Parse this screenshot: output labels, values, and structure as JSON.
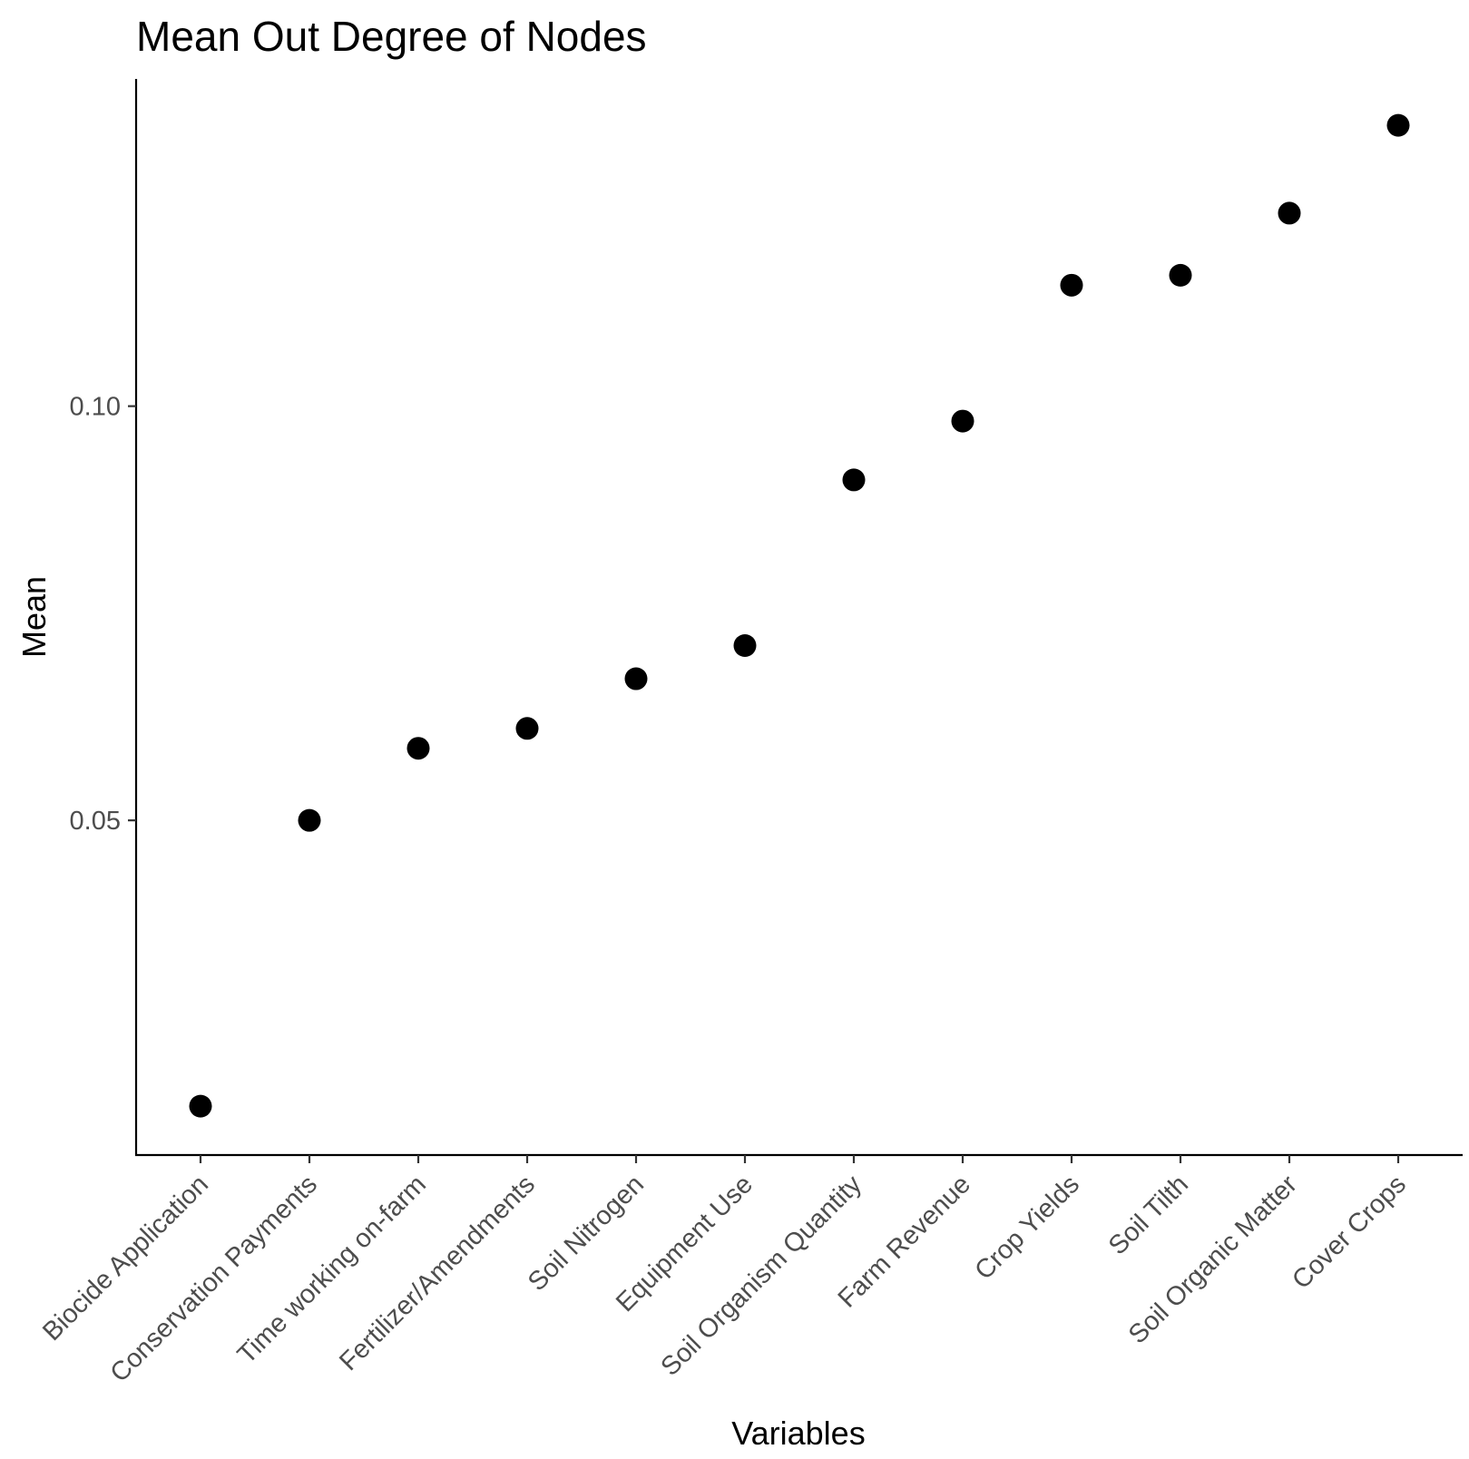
{
  "chart_data": {
    "type": "scatter",
    "title": "Mean Out Degree of Nodes",
    "xlabel": "Variables",
    "ylabel": "Mean",
    "categories": [
      "Biocide Application",
      "Conservation Payments",
      "Time working on-farm",
      "Fertilizer/Amendments",
      "Soil Nitrogen",
      "Equipment Use",
      "Soil Organism Quantity",
      "Farm Revenue",
      "Crop Yields",
      "Soil Tilth",
      "Soil Organic Matter",
      "Cover Crops"
    ],
    "values": [
      0.0155,
      0.05,
      0.0587,
      0.0611,
      0.0671,
      0.0711,
      0.0911,
      0.0982,
      0.1146,
      0.1158,
      0.1233,
      0.1339
    ],
    "yticks": [
      0.05,
      0.1
    ],
    "ytick_labels": [
      "0.05",
      "0.10"
    ],
    "ylim": [
      0.0096,
      0.1395
    ],
    "grid": false,
    "legend": "none",
    "point_color": "#000000"
  }
}
